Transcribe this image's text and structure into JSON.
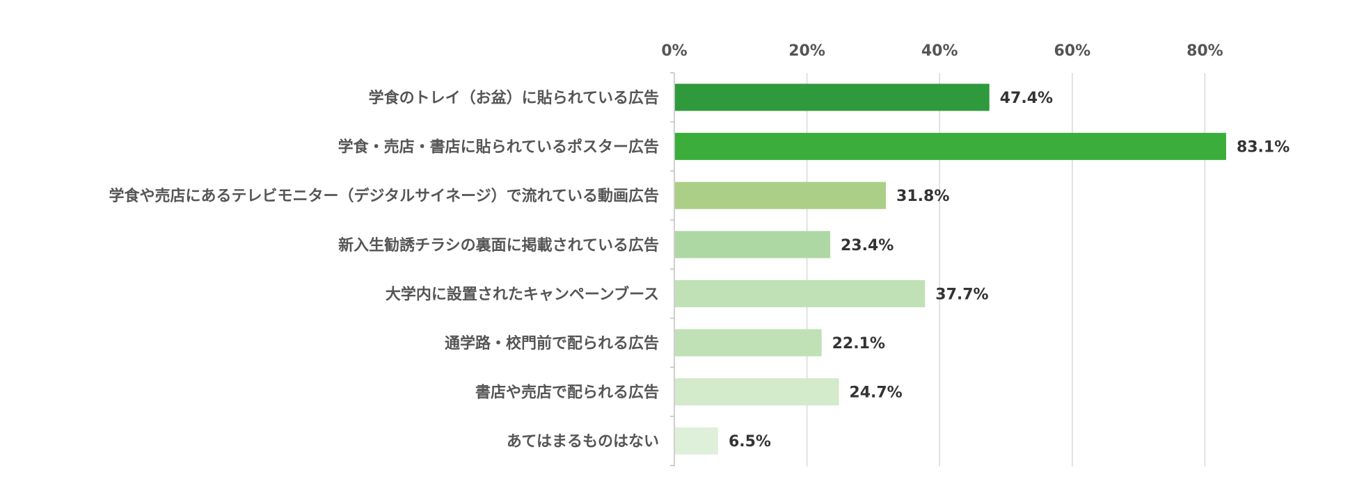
{
  "chart_data": {
    "type": "bar",
    "orientation": "horizontal",
    "categories": [
      "学食のトレイ（お盆）に貼られている広告",
      "学食・売店・書店に貼られているポスター広告",
      "学食や売店にあるテレビモニター（デジタルサイネージ）で流れている動画広告",
      "新入生勧誘チラシの裏面に掲載されている広告",
      "大学内に設置されたキャンペーンブース",
      "通学路・校門前で配られる広告",
      "書店や売店で配られる広告",
      "あてはまるものはない"
    ],
    "values": [
      47.4,
      83.1,
      31.8,
      23.4,
      37.7,
      22.1,
      24.7,
      6.5
    ],
    "value_labels": [
      "47.4%",
      "83.1%",
      "31.8%",
      "23.4%",
      "37.7%",
      "22.1%",
      "24.7%",
      "6.5%"
    ],
    "bar_colors": [
      "#2e9a3c",
      "#3aad3a",
      "#abcf86",
      "#aed8a3",
      "#c0e1b5",
      "#c0e1b5",
      "#d3eacb",
      "#dff0da"
    ],
    "xlim": [
      0,
      90
    ],
    "x_ticks": [
      0,
      20,
      40,
      60,
      80
    ],
    "x_tick_labels": [
      "0%",
      "20%",
      "40%",
      "60%",
      "80%"
    ],
    "tick_position": "top",
    "grid": true,
    "title": "",
    "xlabel": "",
    "ylabel": ""
  }
}
